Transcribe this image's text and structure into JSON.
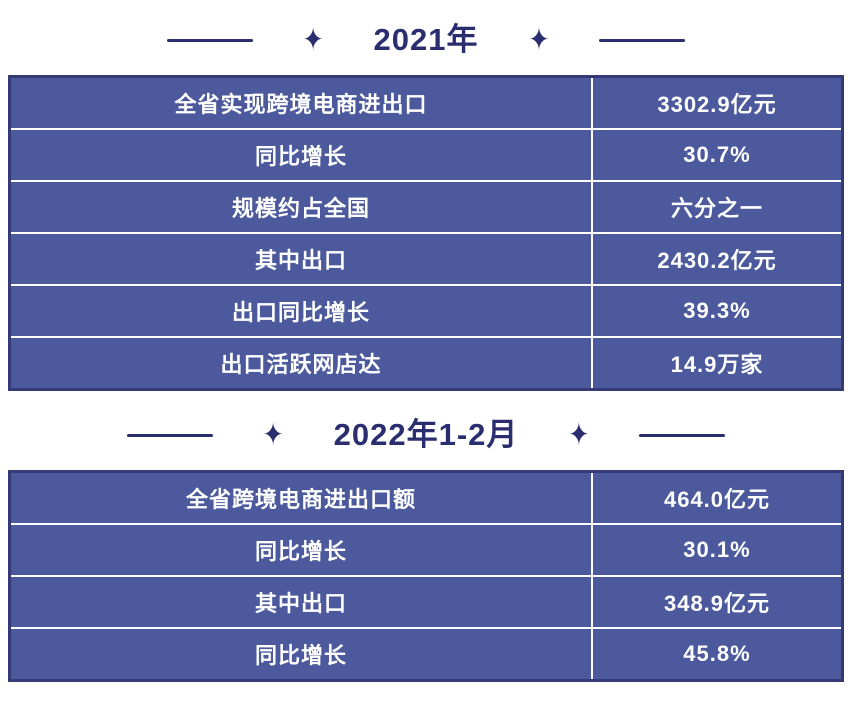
{
  "page": {
    "background": "#ffffff",
    "accent_navy": "#2b2e6e",
    "row_blue": "#4c5a9d",
    "table_border": "#343a74",
    "cell_text": "#ffffff"
  },
  "icons": {
    "sparkle": "✦"
  },
  "sections": [
    {
      "title": "2021年",
      "rows": [
        {
          "label": "全省实现跨境电商进出口",
          "value": "3302.9亿元"
        },
        {
          "label": "同比增长",
          "value": "30.7%"
        },
        {
          "label": "规模约占全国",
          "value": "六分之一"
        },
        {
          "label": "其中出口",
          "value": "2430.2亿元"
        },
        {
          "label": "出口同比增长",
          "value": "39.3%"
        },
        {
          "label": "出口活跃网店达",
          "value": "14.9万家"
        }
      ]
    },
    {
      "title": "2022年1-2月",
      "rows": [
        {
          "label": "全省跨境电商进出口额",
          "value": "464.0亿元"
        },
        {
          "label": "同比增长",
          "value": "30.1%"
        },
        {
          "label": "其中出口",
          "value": "348.9亿元"
        },
        {
          "label": "同比增长",
          "value": "45.8%"
        }
      ]
    }
  ],
  "chart_data": [
    {
      "type": "table",
      "title": "2021年",
      "rows": [
        [
          "全省实现跨境电商进出口",
          "3302.9亿元"
        ],
        [
          "同比增长",
          "30.7%"
        ],
        [
          "规模约占全国",
          "六分之一"
        ],
        [
          "其中出口",
          "2430.2亿元"
        ],
        [
          "出口同比增长",
          "39.3%"
        ],
        [
          "出口活跃网店达",
          "14.9万家"
        ]
      ]
    },
    {
      "type": "table",
      "title": "2022年1-2月",
      "rows": [
        [
          "全省跨境电商进出口额",
          "464.0亿元"
        ],
        [
          "同比增长",
          "30.1%"
        ],
        [
          "其中出口",
          "348.9亿元"
        ],
        [
          "同比增长",
          "45.8%"
        ]
      ]
    }
  ]
}
